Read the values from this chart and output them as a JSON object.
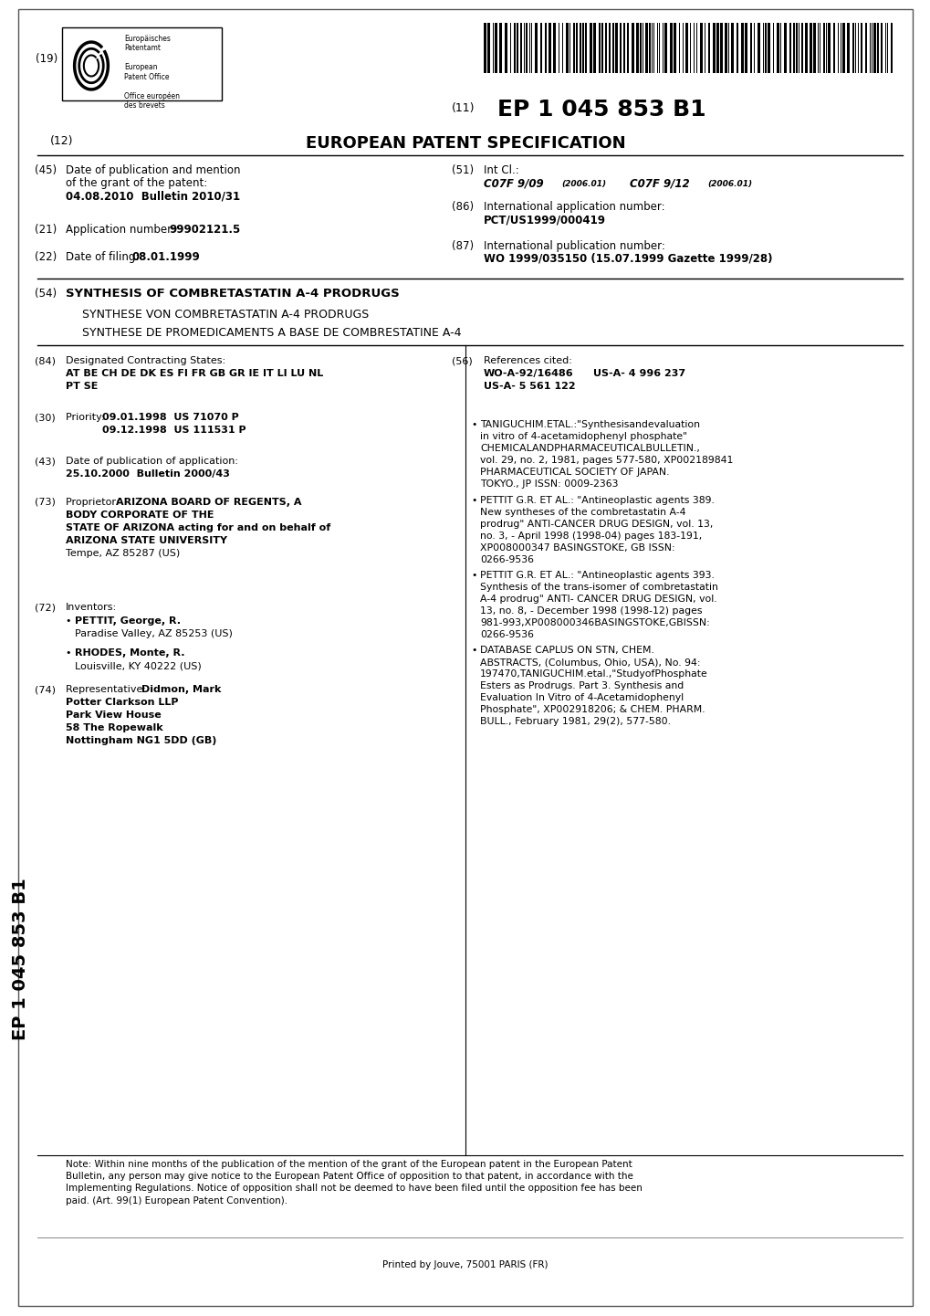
{
  "title": "EP 1 045 853 B1",
  "patent_type": "EUROPEAN PATENT SPECIFICATION",
  "ep_number": "(11)   EP 1 045 853 B1",
  "pub_num_label": "(12)",
  "field_45_label": "(45)",
  "field_45_text1": "Date of publication and mention",
  "field_45_text2": "of the grant of the patent:",
  "field_45_text3": "04.08.2010  Bulletin 2010/31",
  "field_21_label": "(21)",
  "field_21_text": "Application number: 99902121.5",
  "field_22_label": "(22)",
  "field_22_text": "Date of filing: 08.01.1999",
  "field_51_label": "(51)",
  "field_51_text": "Int Cl.:",
  "field_51_class1": "C07F 9/09",
  "field_51_sup1": "(2006.01)",
  "field_51_class2": "C07F 9/12",
  "field_51_sup2": "(2006.01)",
  "field_86_label": "(86)",
  "field_86_text": "International application number:",
  "field_86_num": "PCT/US1999/000419",
  "field_87_label": "(87)",
  "field_87_text": "International publication number:",
  "field_87_num": "WO 1999/035150 (15.07.1999 Gazette 1999/28)",
  "field_54_label": "(54)",
  "field_54_text1": "SYNTHESIS OF COMBRETASTATIN A-4 PRODRUGS",
  "field_54_text2": "SYNTHESE VON COMBRETASTATIN A-4 PRODRUGS",
  "field_54_text3": "SYNTHESE DE PROMEDICAMENTS A BASE DE COMBRESTATINE A-4",
  "field_84_label": "(84)",
  "field_84_text1": "Designated Contracting States:",
  "field_84_text2": "AT BE CH DE DK ES FI FR GB GR IE IT LI LU NL",
  "field_84_text3": "PT SE",
  "field_30_label": "(30)",
  "field_30_text1": "Priority:  09.01.1998  US 71070 P",
  "field_30_text2": "09.12.1998  US 111531 P",
  "field_43_label": "(43)",
  "field_43_text1": "Date of publication of application:",
  "field_43_text2": "25.10.2000  Bulletin 2000/43",
  "field_73_label": "(73)",
  "field_73_text1": "Proprietor: ARIZONA BOARD OF REGENTS, A",
  "field_73_text2": "BODY CORPORATE OF THE",
  "field_73_text3": "STATE OF ARIZONA acting for and on behalf of",
  "field_73_text4": "ARIZONA STATE UNIVERSITY",
  "field_73_text5": "Tempe, AZ 85287 (US)",
  "field_72_label": "(72)",
  "field_72_text0": "Inventors:",
  "field_72_text1": "PETTIT, George, R.",
  "field_72_text2": "Paradise Valley, AZ 85253 (US)",
  "field_72_text3": "RHODES, Monte, R.",
  "field_72_text4": "Louisville, KY 40222 (US)",
  "field_74_label": "(74)",
  "field_74_text1": "Representative: Didmon, Mark",
  "field_74_text2": "Potter Clarkson LLP",
  "field_74_text3": "Park View House",
  "field_74_text4": "58 The Ropewalk",
  "field_74_text5": "Nottingham NG1 5DD (GB)",
  "field_56_label": "(56)",
  "field_56_text1": "References cited:",
  "field_56_ref1a": "WO-A-92/16486",
  "field_56_ref1b": "US-A- 4 996 237",
  "field_56_ref2": "US-A- 5 561 122",
  "bullet1_line1": "TANIGUCHIM.ETAL.:\"Synthesisandevaluation",
  "bullet1_line2": "in vitro of 4-acetamidophenyl phosphate\"",
  "bullet1_line3": "CHEMICALANDPHARMACEUTICALBULLETIN.,",
  "bullet1_line4": "vol. 29, no. 2, 1981, pages 577-580, XP002189841",
  "bullet1_line5": "PHARMACEUTICAL SOCIETY OF JAPAN.",
  "bullet1_line6": "TOKYO., JP ISSN: 0009-2363",
  "bullet2_line1": "PETTIT G.R. ET AL.: \"Antineoplastic agents 389.",
  "bullet2_line2": "New syntheses of the combretastatin A-4",
  "bullet2_line3": "prodrug\" ANTI-CANCER DRUG DESIGN, vol. 13,",
  "bullet2_line4": "no. 3, - April 1998 (1998-04) pages 183-191,",
  "bullet2_line5": "XP008000347 BASINGSTOKE, GB ISSN:",
  "bullet2_line6": "0266-9536",
  "bullet3_line1": "PETTIT G.R. ET AL.: \"Antineoplastic agents 393.",
  "bullet3_line2": "Synthesis of the trans-isomer of combretastatin",
  "bullet3_line3": "A-4 prodrug\" ANTI- CANCER DRUG DESIGN, vol.",
  "bullet3_line4": "13, no. 8, - December 1998 (1998-12) pages",
  "bullet3_line5": "981-993,XP008000346BASINGSTOKE,GBISSN:",
  "bullet3_line6": "0266-9536",
  "bullet4_line1": "DATABASE CAPLUS ON STN, CHEM.",
  "bullet4_line2": "ABSTRACTS, (Columbus, Ohio, USA), No. 94:",
  "bullet4_line3": "197470,TANIGUCHIM.etal.,\"StudyofPhosphate",
  "bullet4_line4": "Esters as Prodrugs. Part 3. Synthesis and",
  "bullet4_line5": "Evaluation In Vitro of 4-Acetamidophenyl",
  "bullet4_line6": "Phosphate\", XP002918206; & CHEM. PHARM.",
  "bullet4_line7": "BULL., February 1981, 29(2), 577-580.",
  "note_text": "Note: Within nine months of the publication of the mention of the grant of the European patent in the European Patent\nBulletin, any person may give notice to the European Patent Office of opposition to that patent, in accordance with the\nImplementing Regulations. Notice of opposition shall not be deemed to have been filed until the opposition fee has been\npaid. (Art. 99(1) European Patent Convention).",
  "printed_by": "Printed by Jouve, 75001 PARIS (FR)",
  "side_text": "EP 1 045 853 B1",
  "bg_color": "#ffffff",
  "text_color": "#000000"
}
